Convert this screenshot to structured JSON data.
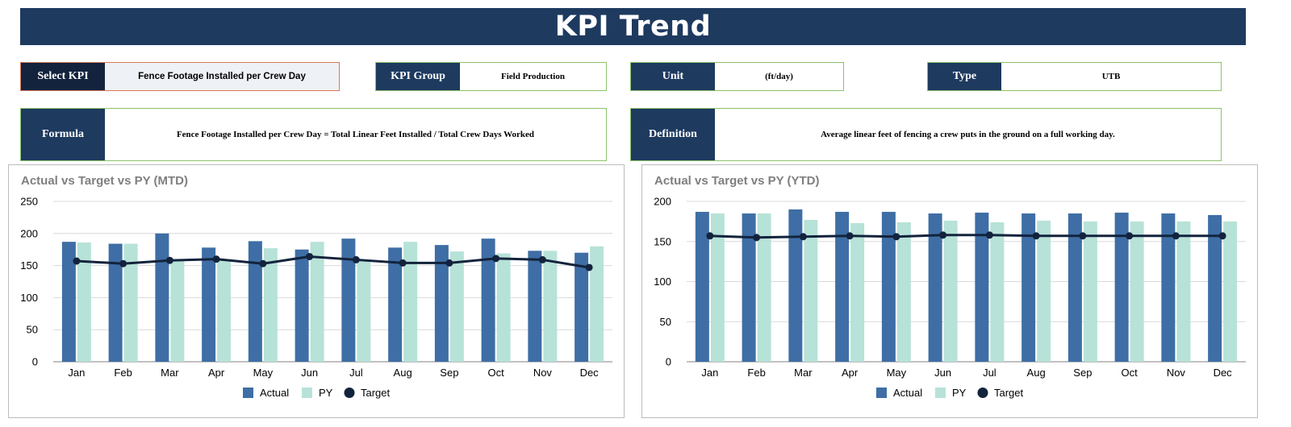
{
  "header": {
    "title": "KPI Trend"
  },
  "fields": {
    "select_kpi": {
      "label": "Select KPI",
      "value": "Fence Footage Installed per Crew Day"
    },
    "kpi_group": {
      "label": "KPI Group",
      "value": "Field Production"
    },
    "unit": {
      "label": "Unit",
      "value": "(ft/day)"
    },
    "type": {
      "label": "Type",
      "value": "UTB"
    },
    "formula": {
      "label": "Formula",
      "value": "Fence Footage Installed per Crew Day = Total Linear Feet Installed / Total Crew Days Worked"
    },
    "definition": {
      "label": "Definition",
      "value": "Average linear feet of fencing a crew puts in the ground on a full working day."
    }
  },
  "colors": {
    "actual": "#3e6ea5",
    "py": "#b7e2d8",
    "target": "#13233d",
    "header": "#1e3a5f"
  },
  "chart_data": [
    {
      "type": "bar",
      "title": "Actual vs Target vs PY (MTD)",
      "categories": [
        "Jan",
        "Feb",
        "Mar",
        "Apr",
        "May",
        "Jun",
        "Jul",
        "Aug",
        "Sep",
        "Oct",
        "Nov",
        "Dec"
      ],
      "ylim": [
        0,
        250
      ],
      "yticks": [
        0,
        50,
        100,
        150,
        200,
        250
      ],
      "grid": true,
      "legend": "bottom",
      "series": [
        {
          "name": "Actual",
          "kind": "bar",
          "values": [
            187,
            184,
            200,
            178,
            188,
            175,
            192,
            178,
            182,
            192,
            173,
            170
          ]
        },
        {
          "name": "PY",
          "kind": "bar",
          "values": [
            186,
            184,
            160,
            160,
            177,
            187,
            158,
            187,
            172,
            169,
            173,
            180
          ]
        },
        {
          "name": "Target",
          "kind": "line",
          "values": [
            157,
            153,
            158,
            160,
            153,
            164,
            159,
            154,
            154,
            161,
            159,
            147
          ]
        }
      ]
    },
    {
      "type": "bar",
      "title": "Actual vs Target vs PY (YTD)",
      "categories": [
        "Jan",
        "Feb",
        "Mar",
        "Apr",
        "May",
        "Jun",
        "Jul",
        "Aug",
        "Sep",
        "Oct",
        "Nov",
        "Dec"
      ],
      "ylim": [
        0,
        200
      ],
      "yticks": [
        0,
        50,
        100,
        150,
        200
      ],
      "grid": true,
      "legend": "bottom",
      "series": [
        {
          "name": "Actual",
          "kind": "bar",
          "values": [
            187,
            185,
            190,
            187,
            187,
            185,
            186,
            185,
            185,
            186,
            185,
            183
          ]
        },
        {
          "name": "PY",
          "kind": "bar",
          "values": [
            185,
            185,
            177,
            173,
            174,
            176,
            174,
            176,
            175,
            175,
            175,
            175
          ]
        },
        {
          "name": "Target",
          "kind": "line",
          "values": [
            157,
            155,
            156,
            157,
            156,
            158,
            158,
            157,
            157,
            157,
            157,
            157
          ]
        }
      ]
    }
  ]
}
